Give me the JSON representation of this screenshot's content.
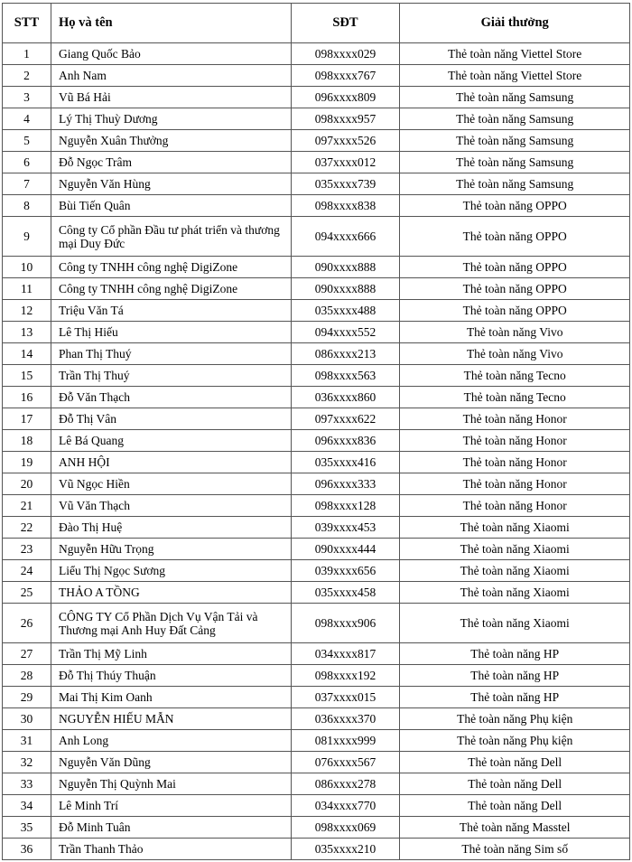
{
  "headers": {
    "stt": "STT",
    "name": "Họ và tên",
    "phone": "SĐT",
    "prize": "Giải thưởng"
  },
  "rows": [
    {
      "stt": "1",
      "name": "Giang Quốc Bảo",
      "phone": "098xxxx029",
      "prize": "Thẻ toàn năng Viettel Store"
    },
    {
      "stt": "2",
      "name": "Anh Nam",
      "phone": "098xxxx767",
      "prize": "Thẻ toàn năng Viettel Store"
    },
    {
      "stt": "3",
      "name": "Vũ Bá Hải",
      "phone": "096xxxx809",
      "prize": "Thẻ toàn năng Samsung"
    },
    {
      "stt": "4",
      "name": "Lý Thị Thuỳ Dương",
      "phone": "098xxxx957",
      "prize": "Thẻ toàn năng Samsung"
    },
    {
      "stt": "5",
      "name": "Nguyễn Xuân Thưởng",
      "phone": "097xxxx526",
      "prize": "Thẻ toàn năng Samsung"
    },
    {
      "stt": "6",
      "name": "Đỗ Ngọc Trâm",
      "phone": "037xxxx012",
      "prize": "Thẻ toàn năng Samsung"
    },
    {
      "stt": "7",
      "name": "Nguyễn Văn Hùng",
      "phone": "035xxxx739",
      "prize": "Thẻ toàn năng Samsung"
    },
    {
      "stt": "8",
      "name": "Bùi Tiến Quân",
      "phone": "098xxxx838",
      "prize": "Thẻ toàn năng OPPO"
    },
    {
      "stt": "9",
      "name": "Công ty Cổ phần Đầu tư phát triển và thương mại Duy Đức",
      "phone": "094xxxx666",
      "prize": "Thẻ toàn năng OPPO"
    },
    {
      "stt": "10",
      "name": "Công ty TNHH công nghệ DigiZone",
      "phone": "090xxxx888",
      "prize": "Thẻ toàn năng OPPO"
    },
    {
      "stt": "11",
      "name": "Công ty TNHH công nghệ DigiZone",
      "phone": "090xxxx888",
      "prize": "Thẻ toàn năng OPPO"
    },
    {
      "stt": "12",
      "name": "Triệu Văn Tá",
      "phone": "035xxxx488",
      "prize": "Thẻ toàn năng OPPO"
    },
    {
      "stt": "13",
      "name": "Lê Thị Hiếu",
      "phone": "094xxxx552",
      "prize": "Thẻ toàn năng Vivo"
    },
    {
      "stt": "14",
      "name": "Phan Thị Thuý",
      "phone": "086xxxx213",
      "prize": "Thẻ toàn năng Vivo"
    },
    {
      "stt": "15",
      "name": "Trần Thị Thuý",
      "phone": "098xxxx563",
      "prize": "Thẻ toàn năng Tecno"
    },
    {
      "stt": "16",
      "name": "Đỗ Văn Thạch",
      "phone": "036xxxx860",
      "prize": "Thẻ toàn năng Tecno"
    },
    {
      "stt": "17",
      "name": "Đỗ Thị Vân",
      "phone": "097xxxx622",
      "prize": "Thẻ toàn năng Honor"
    },
    {
      "stt": "18",
      "name": "Lê Bá Quang",
      "phone": "096xxxx836",
      "prize": "Thẻ toàn năng Honor"
    },
    {
      "stt": "19",
      "name": "ANH HỘI",
      "phone": "035xxxx416",
      "prize": "Thẻ toàn năng Honor"
    },
    {
      "stt": "20",
      "name": "Vũ Ngọc Hiền",
      "phone": "096xxxx333",
      "prize": "Thẻ toàn năng Honor"
    },
    {
      "stt": "21",
      "name": "Vũ Văn Thạch",
      "phone": "098xxxx128",
      "prize": "Thẻ toàn năng Honor"
    },
    {
      "stt": "22",
      "name": "Đào Thị Huệ",
      "phone": "039xxxx453",
      "prize": "Thẻ toàn năng Xiaomi"
    },
    {
      "stt": "23",
      "name": "Nguyễn Hữu Trọng",
      "phone": "090xxxx444",
      "prize": "Thẻ toàn năng Xiaomi"
    },
    {
      "stt": "24",
      "name": "Liểu Thị Ngọc Sương",
      "phone": "039xxxx656",
      "prize": "Thẻ toàn năng Xiaomi"
    },
    {
      "stt": "25",
      "name": "THẢO A TỒNG",
      "phone": "035xxxx458",
      "prize": "Thẻ toàn năng Xiaomi"
    },
    {
      "stt": "26",
      "name": "CÔNG TY Cổ Phần Dịch Vụ Vận Tải và Thương mại Anh Huy Đất Cảng",
      "phone": "098xxxx906",
      "prize": "Thẻ toàn năng Xiaomi"
    },
    {
      "stt": "27",
      "name": "Trần Thị Mỹ Linh",
      "phone": "034xxxx817",
      "prize": "Thẻ toàn năng HP"
    },
    {
      "stt": "28",
      "name": "Đỗ Thị Thúy Thuận",
      "phone": "098xxxx192",
      "prize": "Thẻ toàn năng HP"
    },
    {
      "stt": "29",
      "name": "Mai Thị Kim Oanh",
      "phone": "037xxxx015",
      "prize": "Thẻ toàn năng HP"
    },
    {
      "stt": "30",
      "name": "NGUYỄN HIẾU MẪN",
      "phone": "036xxxx370",
      "prize": "Thẻ toàn năng Phụ kiện"
    },
    {
      "stt": "31",
      "name": "Anh Long",
      "phone": "081xxxx999",
      "prize": "Thẻ toàn năng Phụ kiện"
    },
    {
      "stt": "32",
      "name": "Nguyễn Văn Dũng",
      "phone": "076xxxx567",
      "prize": "Thẻ toàn năng Dell"
    },
    {
      "stt": "33",
      "name": "Nguyễn Thị Quỳnh Mai",
      "phone": "086xxxx278",
      "prize": "Thẻ toàn năng Dell"
    },
    {
      "stt": "34",
      "name": "Lê Minh Trí",
      "phone": "034xxxx770",
      "prize": "Thẻ toàn năng Dell"
    },
    {
      "stt": "35",
      "name": "Đỗ Minh Tuân",
      "phone": "098xxxx069",
      "prize": "Thẻ toàn năng Masstel"
    },
    {
      "stt": "36",
      "name": "Trần Thanh Thảo",
      "phone": "035xxxx210",
      "prize": "Thẻ toàn năng Sim số"
    }
  ]
}
